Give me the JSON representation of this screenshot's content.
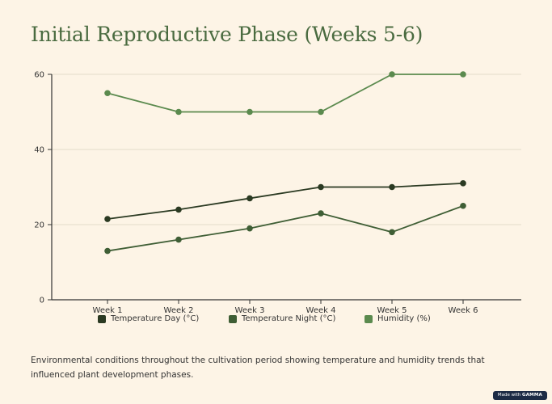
{
  "title": "Initial Reproductive Phase (Weeks 5-6)",
  "caption": "Environmental conditions throughout the cultivation period showing temperature and humidity trends that influenced plant development phases.",
  "badge": {
    "prefix": "Made with",
    "brand": "GAMMA"
  },
  "chart_data": {
    "type": "line",
    "title": "Initial Reproductive Phase (Weeks 5-6)",
    "categories": [
      "Week 1",
      "Week 2",
      "Week 3",
      "Week 4",
      "Week 5",
      "Week 6"
    ],
    "ylim": [
      0,
      60
    ],
    "yticks": [
      0,
      20,
      40,
      60
    ],
    "grid": true,
    "legend_position": "bottom",
    "series": [
      {
        "name": "Temperature Day (°C)",
        "color": "#2b3a22",
        "values": [
          21.5,
          24,
          27,
          30,
          30,
          31
        ]
      },
      {
        "name": "Temperature Night (°C)",
        "color": "#3f5e35",
        "values": [
          13,
          16,
          19,
          23,
          18,
          25
        ]
      },
      {
        "name": "Humidity (%)",
        "color": "#5b8a4e",
        "values": [
          55,
          50,
          50,
          50,
          60,
          60
        ]
      }
    ]
  }
}
